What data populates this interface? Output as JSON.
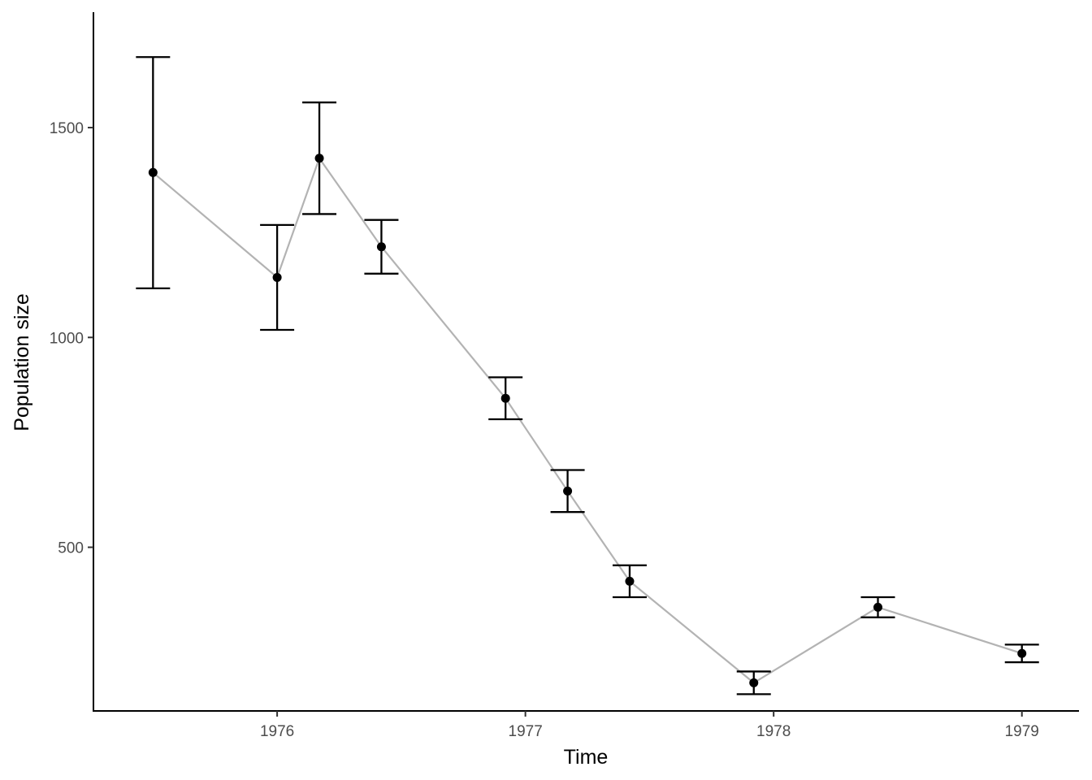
{
  "chart_data": {
    "type": "scatter",
    "title": "",
    "xlabel": "Time",
    "ylabel": "Population size",
    "xlim": [
      1975.26,
      1979.23
    ],
    "ylim": [
      110,
      1775
    ],
    "x_ticks": [
      1976,
      1977,
      1978,
      1979
    ],
    "x_tick_labels": [
      "1976",
      "1977",
      "1978",
      "1979"
    ],
    "y_ticks": [
      500,
      1000,
      1500
    ],
    "y_tick_labels": [
      "500",
      "1000",
      "1500"
    ],
    "grid": false,
    "legend": "none",
    "connect_points": true,
    "series": [
      {
        "points": [
          {
            "x": 1975.5,
            "y": 1393,
            "lower": 1117,
            "upper": 1668
          },
          {
            "x": 1976.0,
            "y": 1143,
            "lower": 1018,
            "upper": 1268
          },
          {
            "x": 1976.17,
            "y": 1427,
            "lower": 1294,
            "upper": 1560
          },
          {
            "x": 1976.42,
            "y": 1216,
            "lower": 1152,
            "upper": 1280
          },
          {
            "x": 1976.92,
            "y": 855,
            "lower": 805,
            "upper": 905
          },
          {
            "x": 1977.17,
            "y": 634,
            "lower": 584,
            "upper": 684
          },
          {
            "x": 1977.42,
            "y": 419,
            "lower": 381,
            "upper": 457
          },
          {
            "x": 1977.92,
            "y": 177,
            "lower": 150,
            "upper": 204
          },
          {
            "x": 1978.42,
            "y": 357,
            "lower": 333,
            "upper": 381
          },
          {
            "x": 1979.0,
            "y": 247,
            "lower": 226,
            "upper": 268
          }
        ]
      }
    ],
    "colors": {
      "points": "#000000",
      "line": "#b3b3b3",
      "axis": "#000000",
      "tick_text": "#4d4d4d"
    }
  }
}
